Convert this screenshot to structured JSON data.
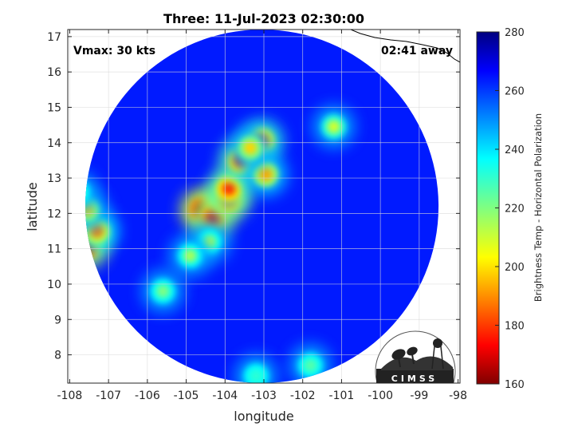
{
  "title": "Three: 11-Jul-2023 02:30:00",
  "annotations": {
    "vmax": "Vmax: 30 kts",
    "away": "02:41 away"
  },
  "logo_text": "CIMSS",
  "chart_data": {
    "type": "heatmap",
    "xlabel": "longitude",
    "ylabel": "latitude",
    "xlim": [
      -108.05,
      -97.95
    ],
    "ylim": [
      7.2,
      17.2
    ],
    "xticks": [
      -108,
      -107,
      -106,
      -105,
      -104,
      -103,
      -102,
      -101,
      -100,
      -99,
      -98
    ],
    "yticks": [
      8,
      9,
      10,
      11,
      12,
      13,
      14,
      15,
      16,
      17
    ],
    "grid": true,
    "swath": {
      "center_lon": -103.05,
      "center_lat": 12.2,
      "radius_deg": 5.0
    },
    "colorbar": {
      "label": "Brightness Temp - Horizontal Polarization",
      "range": [
        160,
        280
      ],
      "ticks": [
        160,
        180,
        200,
        220,
        240,
        260,
        280
      ],
      "colormap": "jet"
    },
    "background_value": 262,
    "cold_features": [
      {
        "lon": -104.6,
        "lat": 12.1,
        "value": 165
      },
      {
        "lon": -104.3,
        "lat": 11.9,
        "value": 172
      },
      {
        "lon": -103.9,
        "lat": 12.4,
        "value": 175
      },
      {
        "lon": -103.9,
        "lat": 12.7,
        "value": 180
      },
      {
        "lon": -103.6,
        "lat": 13.5,
        "value": 180
      },
      {
        "lon": -103.05,
        "lat": 14.05,
        "value": 185
      },
      {
        "lon": -102.95,
        "lat": 13.1,
        "value": 195
      },
      {
        "lon": -103.35,
        "lat": 13.85,
        "value": 200
      },
      {
        "lon": -104.4,
        "lat": 11.2,
        "value": 215
      },
      {
        "lon": -104.9,
        "lat": 10.8,
        "value": 215
      },
      {
        "lon": -101.2,
        "lat": 14.45,
        "value": 210
      },
      {
        "lon": -107.55,
        "lat": 11.05,
        "value": 170
      },
      {
        "lon": -107.3,
        "lat": 11.5,
        "value": 190
      },
      {
        "lon": -107.55,
        "lat": 12.1,
        "value": 200
      },
      {
        "lon": -107.8,
        "lat": 12.6,
        "value": 225
      },
      {
        "lon": -105.6,
        "lat": 9.8,
        "value": 220
      },
      {
        "lon": -101.8,
        "lat": 7.7,
        "value": 225
      },
      {
        "lon": -103.2,
        "lat": 7.4,
        "value": 230
      }
    ]
  }
}
